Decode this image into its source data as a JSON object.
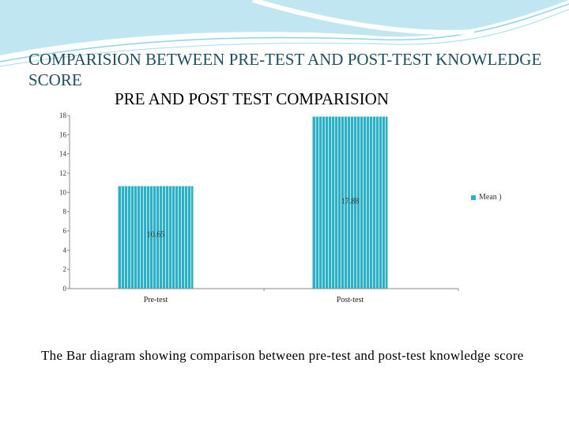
{
  "heading": "COMPARISION BETWEEN PRE-TEST AND POST-TEST KNOWLEDGE SCORE",
  "caption": "The Bar diagram showing comparison between pre-test and post-test knowledge score",
  "colors": {
    "bar": "#2bb0c4",
    "bar_stripe": "#e6f6f9",
    "heading": "#1f4e5c",
    "wave": "#8fd3e6"
  },
  "chart_data": {
    "type": "bar",
    "title": "PRE AND POST TEST COMPARISION",
    "categories": [
      "Pre-test",
      "Post-test"
    ],
    "series": [
      {
        "name": "Mean )",
        "values": [
          10.65,
          17.88
        ]
      }
    ],
    "data_labels": [
      "10.65",
      "17.88"
    ],
    "ylim": [
      0,
      18
    ],
    "yticks": [
      0,
      2,
      4,
      6,
      8,
      10,
      12,
      14,
      16,
      18
    ],
    "ytick_labels": [
      "0",
      "2",
      "4",
      "6",
      "8",
      "10",
      "12",
      "14",
      "16",
      "18"
    ],
    "grid": false,
    "legend": "right"
  }
}
